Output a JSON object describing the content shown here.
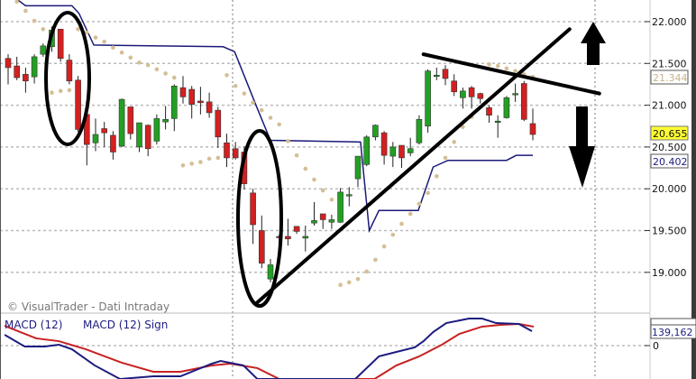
{
  "watermark": "© VisualTrader - Dati Intraday",
  "colors": {
    "up": "#22a022",
    "down": "#d42020",
    "channel": "#1a1a7a",
    "sar": "#d4bf94",
    "macd": "#1c1c80",
    "signal": "#c82020",
    "last_price_bg": "#ffff33"
  },
  "chart_data": [
    {
      "type": "candlestick",
      "title": "",
      "ylim": [
        18.7,
        22.26
      ],
      "grid": true,
      "y_ticks": [
        "22.000",
        "21.500",
        "21.000",
        "20.500",
        "20.000",
        "19.500",
        "19.000"
      ],
      "y_tick_values": [
        22,
        21.5,
        21,
        20.5,
        20,
        19.5,
        19
      ],
      "price_labels": {
        "sar": "21.344",
        "last": "20.655",
        "channel": "20.402"
      },
      "candles": [
        [
          21.56,
          21.61,
          21.25,
          21.45
        ],
        [
          21.47,
          21.58,
          21.3,
          21.33
        ],
        [
          21.37,
          21.45,
          21.15,
          21.29
        ],
        [
          21.34,
          21.61,
          21.26,
          21.58
        ],
        [
          21.61,
          21.74,
          21.58,
          21.71
        ],
        [
          21.7,
          21.94,
          21.64,
          21.9
        ],
        [
          21.91,
          21.91,
          21.52,
          21.56
        ],
        [
          21.54,
          21.61,
          21.25,
          21.29
        ],
        [
          21.3,
          21.35,
          20.68,
          20.71
        ],
        [
          20.89,
          20.89,
          20.28,
          20.53
        ],
        [
          20.55,
          20.84,
          20.45,
          20.65
        ],
        [
          20.72,
          20.8,
          20.5,
          20.67
        ],
        [
          20.64,
          20.69,
          20.35,
          20.44
        ],
        [
          20.51,
          21.08,
          20.5,
          21.07
        ],
        [
          20.98,
          20.98,
          20.59,
          20.66
        ],
        [
          20.5,
          20.79,
          20.44,
          20.79
        ],
        [
          20.76,
          20.77,
          20.39,
          20.48
        ],
        [
          20.57,
          20.89,
          20.53,
          20.84
        ],
        [
          20.8,
          20.99,
          20.71,
          20.83
        ],
        [
          20.84,
          21.25,
          20.69,
          21.23
        ],
        [
          21.21,
          21.35,
          21.02,
          21.1
        ],
        [
          21.19,
          21.23,
          20.84,
          21.01
        ],
        [
          21.05,
          21.22,
          20.89,
          21.03
        ],
        [
          21.04,
          21.15,
          20.85,
          20.91
        ],
        [
          20.94,
          20.98,
          20.49,
          20.62
        ],
        [
          20.55,
          20.66,
          20.26,
          20.37
        ],
        [
          20.48,
          20.56,
          20.35,
          20.37
        ],
        [
          20.44,
          20.51,
          19.99,
          20.06
        ],
        [
          19.95,
          20.0,
          19.34,
          19.57
        ],
        [
          19.5,
          19.68,
          19.05,
          19.11
        ],
        [
          18.92,
          19.16,
          18.88,
          19.09
        ],
        [
          19.43,
          19.45,
          19.21,
          19.42
        ],
        [
          19.43,
          19.64,
          19.32,
          19.4
        ],
        [
          19.55,
          19.55,
          19.46,
          19.49
        ],
        [
          19.41,
          19.56,
          19.25,
          19.43
        ],
        [
          19.59,
          19.84,
          19.56,
          19.62
        ],
        [
          19.7,
          19.7,
          19.52,
          19.63
        ],
        [
          19.6,
          19.69,
          19.52,
          19.63
        ],
        [
          19.6,
          20.01,
          19.59,
          19.96
        ],
        [
          19.93,
          20.02,
          19.79,
          19.93
        ],
        [
          20.12,
          20.39,
          20.02,
          20.39
        ],
        [
          20.29,
          20.64,
          20.27,
          20.62
        ],
        [
          20.62,
          20.77,
          20.58,
          20.76
        ],
        [
          20.67,
          20.69,
          20.29,
          20.4
        ],
        [
          20.39,
          20.56,
          20.26,
          20.5
        ],
        [
          20.52,
          20.52,
          20.25,
          20.37
        ],
        [
          20.43,
          20.61,
          20.39,
          20.48
        ],
        [
          20.55,
          20.88,
          20.53,
          20.83
        ],
        [
          20.75,
          21.43,
          20.67,
          21.41
        ],
        [
          21.36,
          21.45,
          21.3,
          21.36
        ],
        [
          21.43,
          21.48,
          21.24,
          21.32
        ],
        [
          21.29,
          21.37,
          21.11,
          21.16
        ],
        [
          21.09,
          21.21,
          20.96,
          21.17
        ],
        [
          21.21,
          21.23,
          20.96,
          21.1
        ],
        [
          21.14,
          21.15,
          21.02,
          21.08
        ],
        [
          20.97,
          21.0,
          20.79,
          20.88
        ],
        [
          20.81,
          20.88,
          20.61,
          20.81
        ],
        [
          20.85,
          21.11,
          20.84,
          21.09
        ],
        [
          21.14,
          21.26,
          21.04,
          21.14
        ],
        [
          21.26,
          21.29,
          20.81,
          20.83
        ],
        [
          20.78,
          20.96,
          20.58,
          20.65
        ]
      ],
      "candle_format": [
        "open",
        "high",
        "low",
        "close"
      ],
      "sar": [
        [
          1,
          22.24
        ],
        [
          2,
          22.13
        ],
        [
          3,
          22.01
        ],
        [
          4,
          21.91
        ],
        [
          5,
          21.15
        ],
        [
          6,
          21.17
        ],
        [
          7,
          21.18
        ],
        [
          8,
          21.91
        ],
        [
          9,
          21.87
        ],
        [
          10,
          21.81
        ],
        [
          11,
          21.76
        ],
        [
          12,
          21.69
        ],
        [
          13,
          21.63
        ],
        [
          14,
          21.57
        ],
        [
          15,
          21.51
        ],
        [
          16,
          21.48
        ],
        [
          17,
          21.43
        ],
        [
          18,
          21.38
        ],
        [
          19,
          21.33
        ],
        [
          20,
          20.28
        ],
        [
          21,
          20.3
        ],
        [
          22,
          20.32
        ],
        [
          23,
          20.36
        ],
        [
          24,
          20.37
        ],
        [
          25,
          21.36
        ],
        [
          26,
          21.23
        ],
        [
          27,
          21.14
        ],
        [
          28,
          21.03
        ],
        [
          29,
          20.94
        ],
        [
          30,
          20.85
        ],
        [
          31,
          20.77
        ],
        [
          32,
          20.57
        ],
        [
          33,
          20.4
        ],
        [
          34,
          20.24
        ],
        [
          35,
          20.11
        ],
        [
          36,
          19.98
        ],
        [
          37,
          19.87
        ],
        [
          38,
          18.85
        ],
        [
          39,
          18.88
        ],
        [
          40,
          18.92
        ],
        [
          41,
          19.01
        ],
        [
          42,
          19.15
        ],
        [
          43,
          19.31
        ],
        [
          44,
          19.45
        ],
        [
          45,
          19.58
        ],
        [
          46,
          19.7
        ],
        [
          47,
          19.82
        ],
        [
          48,
          19.95
        ],
        [
          49,
          20.15
        ],
        [
          50,
          20.37
        ],
        [
          51,
          20.56
        ],
        [
          52,
          20.74
        ],
        [
          53,
          20.86
        ],
        [
          55,
          21.49
        ],
        [
          56,
          21.47
        ],
        [
          57,
          21.44
        ],
        [
          58,
          21.41
        ],
        [
          59,
          21.37
        ],
        [
          60,
          21.34
        ]
      ],
      "channel": [
        [
          1.1,
          22.26
        ],
        [
          2.0,
          22.19
        ],
        [
          7.3,
          22.19
        ],
        [
          8.1,
          22.1
        ],
        [
          9.8,
          21.72
        ],
        [
          24.6,
          21.7
        ],
        [
          25.9,
          21.64
        ],
        [
          28.5,
          20.96
        ],
        [
          30.0,
          20.58
        ],
        [
          40.3,
          20.56
        ],
        [
          41.3,
          19.5
        ],
        [
          42.4,
          19.74
        ],
        [
          46.9,
          19.74
        ],
        [
          48.6,
          20.26
        ],
        [
          50.3,
          20.34
        ],
        [
          57.0,
          20.34
        ],
        [
          58.1,
          20.4
        ],
        [
          60.0,
          20.4
        ]
      ],
      "trendlines": [
        [
          [
            28.5,
            18.64
          ],
          [
            64.2,
            21.91
          ]
        ],
        [
          [
            47.5,
            21.61
          ],
          [
            67.6,
            21.14
          ]
        ]
      ]
    },
    {
      "type": "line",
      "y_ticks": [
        "0"
      ],
      "value_label": "139,162",
      "series": [
        {
          "name": "MACD (12)",
          "points": [
            [
              -0.4,
              104000
            ],
            [
              1.9,
              -9000
            ],
            [
              4.2,
              -9000
            ],
            [
              5.8,
              9000
            ],
            [
              7.3,
              -35000
            ],
            [
              9.9,
              -191000
            ],
            [
              12.8,
              -322000
            ],
            [
              16.6,
              -296000
            ],
            [
              19.7,
              -296000
            ],
            [
              23.3,
              -174000
            ],
            [
              24.3,
              -148000
            ],
            [
              26.9,
              -191000
            ],
            [
              28.5,
              -322000
            ],
            [
              39.7,
              -322000
            ],
            [
              42.4,
              -104000
            ],
            [
              44.4,
              -61000
            ],
            [
              46.5,
              -17000
            ],
            [
              47.5,
              43000
            ],
            [
              48.6,
              130000
            ],
            [
              50.1,
              217000
            ],
            [
              52.7,
              261000
            ],
            [
              54.2,
              261000
            ],
            [
              55.8,
              217000
            ],
            [
              58.4,
              209000
            ],
            [
              59.9,
              139162
            ]
          ]
        },
        {
          "name": "MACD (12) Sign",
          "points": [
            [
              -0.4,
              191000
            ],
            [
              3.2,
              70000
            ],
            [
              5.8,
              43000
            ],
            [
              8.9,
              -35000
            ],
            [
              13.0,
              -165000
            ],
            [
              16.6,
              -252000
            ],
            [
              19.7,
              -252000
            ],
            [
              23.3,
              -191000
            ],
            [
              25.4,
              -174000
            ],
            [
              28.5,
              -217000
            ],
            [
              31.0,
              -322000
            ],
            [
              41.9,
              -322000
            ],
            [
              44.4,
              -191000
            ],
            [
              47.0,
              -104000
            ],
            [
              49.6,
              9000
            ],
            [
              51.6,
              113000
            ],
            [
              54.2,
              183000
            ],
            [
              56.3,
              200000
            ],
            [
              58.4,
              209000
            ],
            [
              60.1,
              183000
            ]
          ]
        }
      ]
    }
  ]
}
